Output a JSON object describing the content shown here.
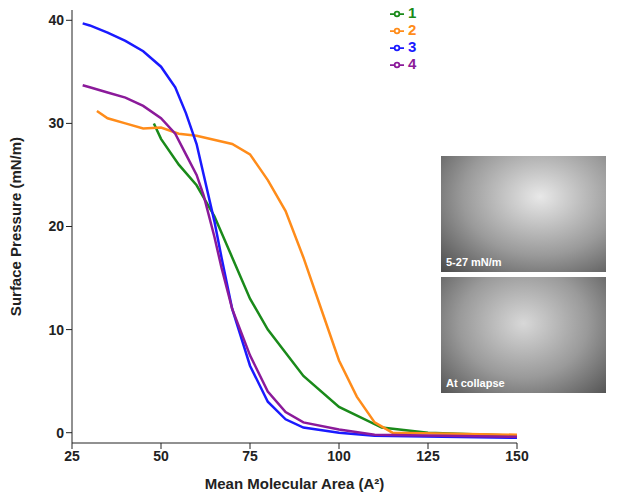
{
  "chart_data": {
    "type": "line",
    "x_label": "Mean Molecular Area (A²)",
    "y_label": "Surface Pressure (mN/m)",
    "xlim": [
      25,
      150
    ],
    "xticks": [
      25,
      50,
      75,
      100,
      125,
      150
    ],
    "ylim": [
      -1,
      41
    ],
    "yticks": [
      0,
      10,
      20,
      30,
      40
    ],
    "grid": false,
    "legend": "upper right",
    "annotations": [
      "5-27 mN/m",
      "At collapse"
    ],
    "series": [
      {
        "name": "1",
        "color": "#1a8a1a",
        "x": [
          150,
          125,
          112,
          100,
          90,
          80,
          75,
          70,
          65,
          60,
          55,
          50,
          48
        ],
        "values": [
          -0.3,
          0,
          0.5,
          2.5,
          5.5,
          10,
          13,
          17,
          21,
          24,
          26,
          28.5,
          30
        ]
      },
      {
        "name": "2",
        "color": "#ff8c1a",
        "x": [
          150,
          115,
          110,
          105,
          100,
          95,
          90,
          85,
          80,
          75,
          70,
          60,
          55,
          50,
          45,
          40,
          35,
          32
        ],
        "values": [
          -0.2,
          0,
          1,
          3.5,
          7,
          12,
          17,
          21.5,
          24.5,
          27,
          28,
          28.8,
          29,
          29.6,
          29.5,
          30,
          30.5,
          31.2
        ]
      },
      {
        "name": "3",
        "color": "#1a1aff",
        "x": [
          150,
          110,
          100,
          90,
          85,
          80,
          75,
          70,
          67,
          65,
          62,
          60,
          57,
          54,
          50,
          45,
          40,
          35,
          30,
          28
        ],
        "values": [
          -0.5,
          -0.3,
          0,
          0.5,
          1.3,
          3,
          6.5,
          12,
          17,
          20.5,
          25,
          28,
          31,
          33.5,
          35.5,
          37,
          38,
          38.8,
          39.5,
          39.7
        ]
      },
      {
        "name": "4",
        "color": "#8b1a9a",
        "x": [
          150,
          110,
          100,
          90,
          85,
          80,
          75,
          70,
          67,
          65,
          62,
          60,
          57,
          54,
          50,
          45,
          40,
          35,
          30,
          28
        ],
        "values": [
          -0.4,
          -0.2,
          0.3,
          1,
          2,
          4,
          7.5,
          12,
          16,
          19,
          23,
          25,
          27,
          29,
          30.5,
          31.7,
          32.5,
          33,
          33.5,
          33.7
        ]
      }
    ]
  }
}
